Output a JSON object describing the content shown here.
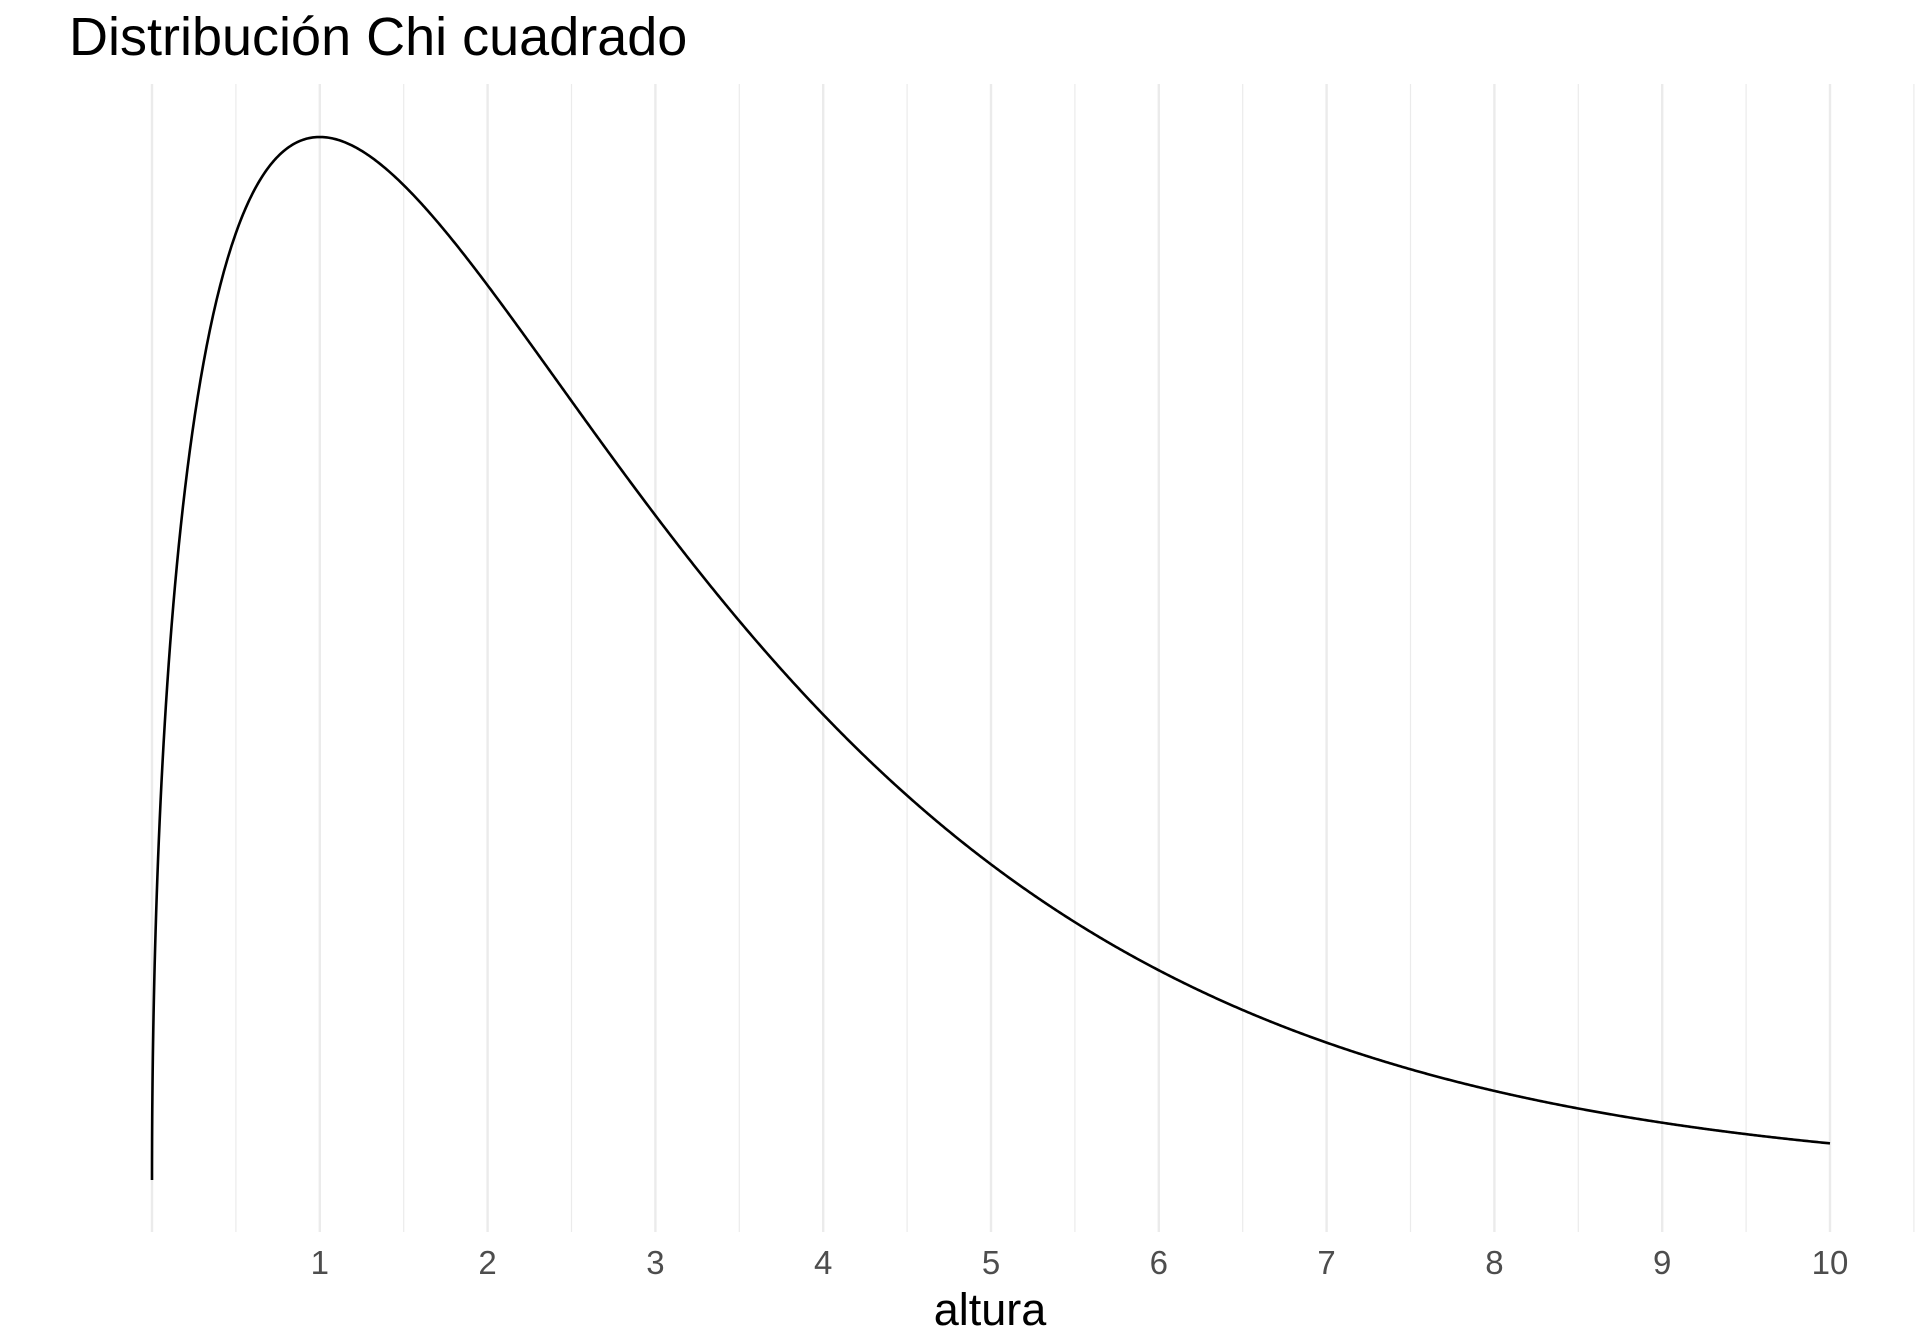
{
  "chart_data": {
    "type": "line",
    "title": "Distribución Chi cuadrado",
    "xlabel": "altura",
    "ylabel": "",
    "x_ticks": [
      1,
      2,
      3,
      4,
      5,
      6,
      7,
      8,
      9,
      10
    ],
    "x_tick_labels": [
      "1",
      "2",
      "3",
      "4",
      "5",
      "6",
      "7",
      "8",
      "9",
      "10"
    ],
    "xlim": [
      0,
      10
    ],
    "grid": {
      "vertical_major": true,
      "vertical_minor": true,
      "horizontal": false
    },
    "y_axis_labels_shown": false,
    "legend": "none",
    "line_color": "#000000",
    "series": [
      {
        "distribution": "chi-squared",
        "degrees_of_freedom": 3,
        "x": [
          0.005,
          0.02,
          0.05,
          0.1,
          0.15,
          0.2,
          0.25,
          0.3,
          0.4,
          0.5,
          0.6,
          0.7,
          0.8,
          0.9,
          1.0,
          1.1,
          1.2,
          1.4,
          1.6,
          1.8,
          2.0,
          2.25,
          2.5,
          2.75,
          3.0,
          3.25,
          3.5,
          3.75,
          4.0,
          4.5,
          5.0,
          5.5,
          6.0,
          6.5,
          7.0,
          7.5,
          8.0,
          8.5,
          9.0,
          9.5,
          10.0
        ],
        "y": [
          0.0281,
          0.0559,
          0.0874,
          0.12,
          0.1434,
          0.1614,
          0.176,
          0.188,
          0.2066,
          0.2197,
          0.2289,
          0.2349,
          0.2385,
          0.2402,
          0.242,
          0.2402,
          0.2385,
          0.2318,
          0.2228,
          0.2123,
          0.2076,
          0.1948,
          0.1809,
          0.1668,
          0.1542,
          0.1397,
          0.1302,
          0.1185,
          0.108,
          0.0877,
          0.0733,
          0.0598,
          0.0487,
          0.0396,
          0.032,
          0.0256,
          0.0206,
          0.0166,
          0.014,
          0.0118,
          0.0085
        ]
      }
    ]
  }
}
